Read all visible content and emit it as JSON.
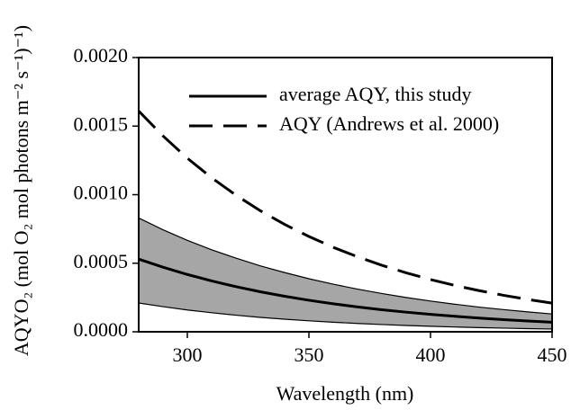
{
  "chart_data": {
    "type": "line",
    "xlabel": "Wavelength (nm)",
    "ylabel": "AQYO₂ (mol O₂ mol photons m⁻² s⁻¹)⁻¹)",
    "x": [
      280,
      290,
      300,
      310,
      320,
      330,
      340,
      350,
      360,
      370,
      380,
      390,
      400,
      410,
      420,
      430,
      440,
      450
    ],
    "series": [
      {
        "name": "average AQY, this study",
        "color": "#000000",
        "dash": "solid",
        "values": [
          0.00053,
          0.000471,
          0.000418,
          0.000371,
          0.000329,
          0.000292,
          0.000259,
          0.00023,
          0.000204,
          0.000181,
          0.000161,
          0.000143,
          0.000127,
          0.000113,
          0.0001,
          8.88e-05,
          7.89e-05,
          7e-05
        ]
      },
      {
        "name": "AQY (Andrews et al. 2000)",
        "color": "#000000",
        "dash": "dashed",
        "values": [
          0.00161,
          0.001428,
          0.001266,
          0.001123,
          0.000996,
          0.000883,
          0.000783,
          0.000695,
          0.000616,
          0.000547,
          0.000485,
          0.00043,
          0.000381,
          0.000338,
          0.0003,
          0.000266,
          0.000236,
          0.000209
        ]
      }
    ],
    "band": {
      "color": "#a6a6a6",
      "upper": [
        0.00083,
        0.000744,
        0.000667,
        0.000598,
        0.000537,
        0.000481,
        0.000432,
        0.000387,
        0.000347,
        0.000311,
        0.000279,
        0.00025,
        0.000224,
        0.000201,
        0.00018,
        0.000162,
        0.000145,
        0.00013
      ],
      "lower": [
        0.00021,
        0.000183,
        0.000159,
        0.000139,
        0.000121,
        0.000105,
        9.17e-05,
        7.99e-05,
        6.96e-05,
        6.06e-05,
        5.28e-05,
        4.6e-05,
        4.01e-05,
        3.49e-05,
        3.04e-05,
        2.65e-05,
        2.31e-05,
        2.01e-05
      ]
    },
    "xlim": [
      280,
      450
    ],
    "ylim": [
      0,
      0.002
    ],
    "xticks": [
      300,
      350,
      400,
      450
    ],
    "yticks": [
      {
        "value": 0,
        "label": "0.0000"
      },
      {
        "value": 0.0005,
        "label": "0.0005"
      },
      {
        "value": 0.001,
        "label": "0.0010"
      },
      {
        "value": 0.0015,
        "label": "0.0015"
      },
      {
        "value": 0.002,
        "label": "0.0020"
      }
    ],
    "legend": "upper right",
    "grid": false
  }
}
